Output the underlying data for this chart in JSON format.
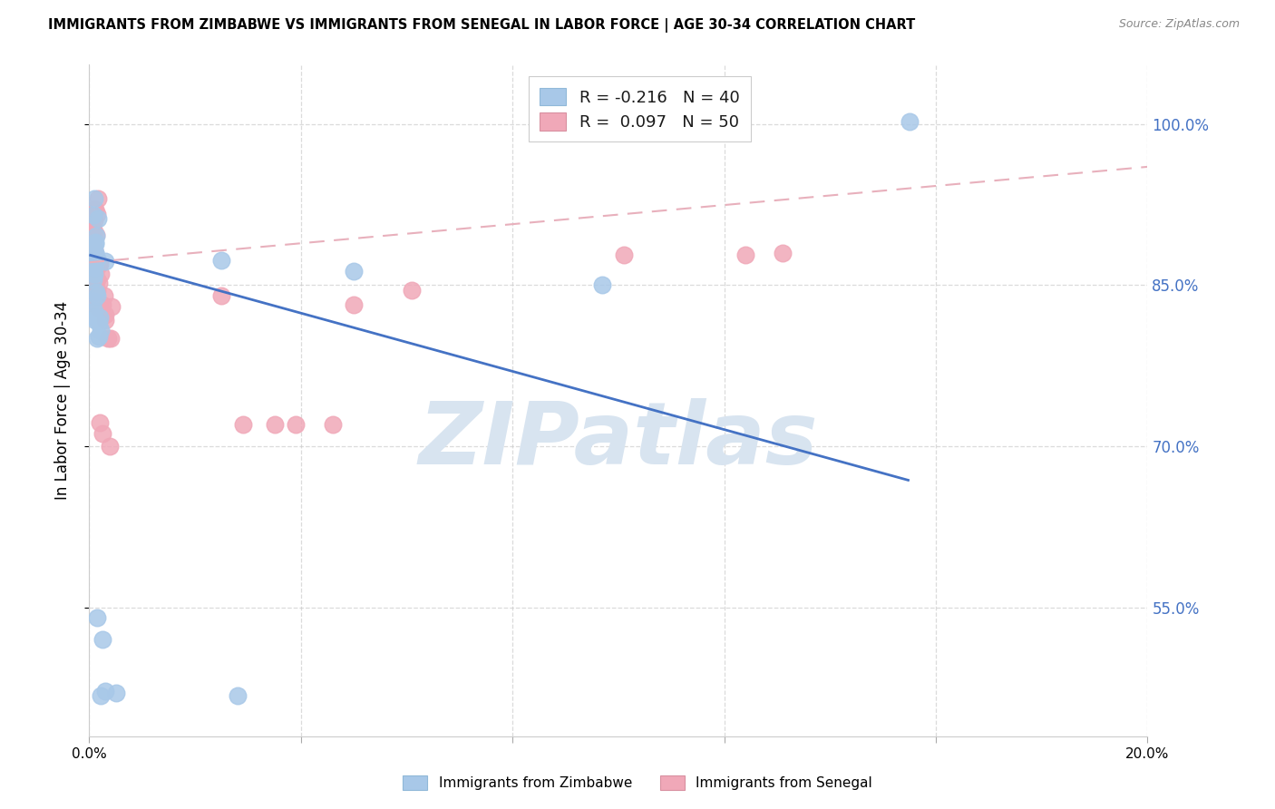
{
  "title": "IMMIGRANTS FROM ZIMBABWE VS IMMIGRANTS FROM SENEGAL IN LABOR FORCE | AGE 30-34 CORRELATION CHART",
  "source": "Source: ZipAtlas.com",
  "ylabel": "In Labor Force | Age 30-34",
  "xlim": [
    0.0,
    0.2
  ],
  "ylim": [
    0.43,
    1.055
  ],
  "ytick_vals": [
    0.55,
    0.7,
    0.85,
    1.0
  ],
  "ytick_labels": [
    "55.0%",
    "70.0%",
    "85.0%",
    "100.0%"
  ],
  "xtick_vals": [
    0.0,
    0.04,
    0.08,
    0.12,
    0.16,
    0.2
  ],
  "xtick_labels": [
    "0.0%",
    "",
    "",
    "",
    "",
    "20.0%"
  ],
  "blue_scatter_color": "#A8C8E8",
  "pink_scatter_color": "#F0A8B8",
  "blue_line_color": "#4472C4",
  "pink_dash_color": "#E8B0BC",
  "right_tick_color": "#4472C4",
  "watermark_text": "ZIPatlas",
  "watermark_color": "#D8E4F0",
  "legend_label1": "R = -0.216   N = 40",
  "legend_label2": "R =  0.097   N = 50",
  "blue_line_x": [
    0.0,
    0.155
  ],
  "blue_line_y": [
    0.878,
    0.668
  ],
  "pink_line_x": [
    0.0,
    0.2
  ],
  "pink_line_y": [
    0.871,
    0.96
  ],
  "zimbabwe_x": [
    0.0005,
    0.0008,
    0.001,
    0.0012,
    0.0015,
    0.0007,
    0.0009,
    0.0011,
    0.0006,
    0.0013,
    0.0016,
    0.0008,
    0.001,
    0.0012,
    0.0009,
    0.0011,
    0.0007,
    0.0013,
    0.001,
    0.0008,
    0.0015,
    0.0012,
    0.0009,
    0.0018,
    0.002,
    0.0015,
    0.0022,
    0.0018,
    0.0014,
    0.0025,
    0.003,
    0.0022,
    0.001,
    0.003,
    0.025,
    0.05,
    0.097,
    0.155,
    0.005,
    0.028
  ],
  "zimbabwe_y": [
    0.885,
    0.915,
    0.93,
    0.88,
    0.875,
    0.868,
    0.86,
    0.888,
    0.877,
    0.896,
    0.912,
    0.855,
    0.866,
    0.88,
    0.872,
    0.89,
    0.835,
    0.843,
    0.87,
    0.88,
    0.8,
    0.817,
    0.826,
    0.802,
    0.82,
    0.84,
    0.808,
    0.815,
    0.54,
    0.52,
    0.472,
    0.468,
    0.82,
    0.872,
    0.873,
    0.863,
    0.85,
    1.002,
    0.47,
    0.468
  ],
  "senegal_x": [
    0.0005,
    0.0008,
    0.001,
    0.0012,
    0.0015,
    0.0007,
    0.0009,
    0.0011,
    0.0006,
    0.0013,
    0.0016,
    0.0008,
    0.001,
    0.0012,
    0.0009,
    0.0011,
    0.0007,
    0.0013,
    0.001,
    0.0008,
    0.0015,
    0.0012,
    0.0009,
    0.0018,
    0.002,
    0.0015,
    0.0022,
    0.0018,
    0.0014,
    0.0025,
    0.003,
    0.0022,
    0.0028,
    0.0035,
    0.004,
    0.003,
    0.002,
    0.0038,
    0.0025,
    0.0042,
    0.025,
    0.05,
    0.061,
    0.101,
    0.124,
    0.131,
    0.035,
    0.046,
    0.029,
    0.039
  ],
  "senegal_y": [
    0.882,
    0.9,
    0.91,
    0.92,
    0.916,
    0.882,
    0.872,
    0.878,
    0.887,
    0.897,
    0.93,
    0.92,
    0.872,
    0.862,
    0.882,
    0.877,
    0.902,
    0.865,
    0.857,
    0.872,
    0.83,
    0.84,
    0.86,
    0.87,
    0.87,
    0.855,
    0.86,
    0.852,
    0.845,
    0.832,
    0.822,
    0.827,
    0.84,
    0.8,
    0.8,
    0.817,
    0.722,
    0.7,
    0.712,
    0.83,
    0.84,
    0.832,
    0.845,
    0.878,
    0.878,
    0.88,
    0.72,
    0.72,
    0.72,
    0.72
  ]
}
